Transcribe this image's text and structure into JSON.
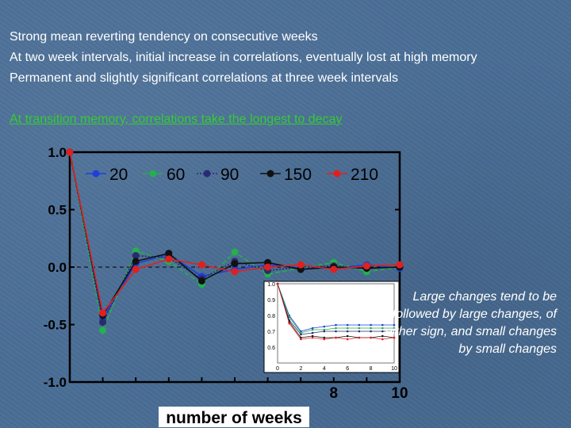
{
  "bullets": [
    "Strong mean reverting tendency on consecutive weeks",
    "At two week intervals, initial increase in correlations, eventually lost at high memory",
    "Permanent and slightly significant correlations at three week intervals"
  ],
  "highlight": "At transition memory, correlations take the longest to decay",
  "annotation": "Large changes tend to be followed by large changes, of either sign, and small changes by small changes",
  "colors": {
    "s20": "#1f3fd9",
    "s60": "#22b14c",
    "s90": "#2a2a6e",
    "s150": "#111111",
    "s210": "#e02020",
    "highlight": "#33cc33",
    "panel": "#ffffff"
  },
  "chart_data": [
    {
      "type": "line",
      "xlabel": "number of weeks",
      "ylim": [
        -1.0,
        1.0
      ],
      "xlim": [
        0,
        10
      ],
      "ytick_labels": [
        "1.0",
        "0.5",
        "0.0",
        "-0.5",
        "-1.0"
      ],
      "ytick_values": [
        1.0,
        0.5,
        0.0,
        -0.5,
        -1.0
      ],
      "xtick_labels": [
        "8",
        "10"
      ],
      "xtick_values": [
        8,
        10
      ],
      "legend_placement": "top",
      "x": [
        0,
        1,
        2,
        3,
        4,
        5,
        6,
        7,
        8,
        9,
        10
      ],
      "series": [
        {
          "name": "20",
          "color_key": "s20",
          "style": "solid",
          "values": [
            1.0,
            -0.45,
            0.03,
            0.11,
            -0.08,
            -0.02,
            0.02,
            -0.01,
            -0.01,
            0.02,
            -0.01
          ]
        },
        {
          "name": "60",
          "color_key": "s60",
          "style": "dashed",
          "values": [
            1.0,
            -0.55,
            0.14,
            0.05,
            -0.15,
            0.13,
            -0.06,
            -0.01,
            0.04,
            -0.04,
            0.0
          ]
        },
        {
          "name": "90",
          "color_key": "s90",
          "style": "dotted",
          "values": [
            1.0,
            -0.48,
            0.1,
            0.08,
            -0.1,
            0.05,
            -0.03,
            0.0,
            0.01,
            -0.01,
            0.0
          ]
        },
        {
          "name": "150",
          "color_key": "s150",
          "style": "solid",
          "values": [
            1.0,
            -0.42,
            0.05,
            0.12,
            -0.12,
            0.03,
            0.04,
            -0.02,
            0.0,
            -0.01,
            0.0
          ]
        },
        {
          "name": "210",
          "color_key": "s210",
          "style": "solid",
          "values": [
            1.0,
            -0.4,
            -0.02,
            0.07,
            0.02,
            -0.04,
            0.0,
            0.02,
            -0.02,
            0.01,
            0.02
          ]
        }
      ]
    },
    {
      "type": "line",
      "inset": true,
      "ylim": [
        0.5,
        1.0
      ],
      "xlim": [
        0,
        10
      ],
      "ytick_labels": [
        "1.0",
        "0.9",
        "0.8",
        "0.7",
        "0.6"
      ],
      "ytick_values": [
        1.0,
        0.9,
        0.8,
        0.7,
        0.6
      ],
      "xtick_labels": [
        "0",
        "2",
        "4",
        "6",
        "8",
        "10"
      ],
      "xtick_values": [
        0,
        2,
        4,
        6,
        8,
        10
      ],
      "x": [
        0,
        1,
        2,
        3,
        4,
        5,
        6,
        7,
        8,
        9,
        10
      ],
      "series": [
        {
          "color_key": "s20",
          "values": [
            1.0,
            0.8,
            0.7,
            0.72,
            0.73,
            0.74,
            0.74,
            0.74,
            0.74,
            0.74,
            0.74
          ]
        },
        {
          "color_key": "s60",
          "values": [
            1.0,
            0.79,
            0.69,
            0.71,
            0.71,
            0.72,
            0.72,
            0.72,
            0.72,
            0.72,
            0.72
          ]
        },
        {
          "color_key": "s90",
          "values": [
            1.0,
            0.77,
            0.68,
            0.69,
            0.7,
            0.7,
            0.7,
            0.7,
            0.7,
            0.7,
            0.7
          ]
        },
        {
          "color_key": "s150",
          "values": [
            1.0,
            0.76,
            0.66,
            0.67,
            0.66,
            0.66,
            0.67,
            0.66,
            0.66,
            0.67,
            0.66
          ]
        },
        {
          "color_key": "s210",
          "values": [
            1.0,
            0.75,
            0.65,
            0.66,
            0.65,
            0.66,
            0.65,
            0.66,
            0.66,
            0.65,
            0.66
          ]
        }
      ]
    }
  ]
}
